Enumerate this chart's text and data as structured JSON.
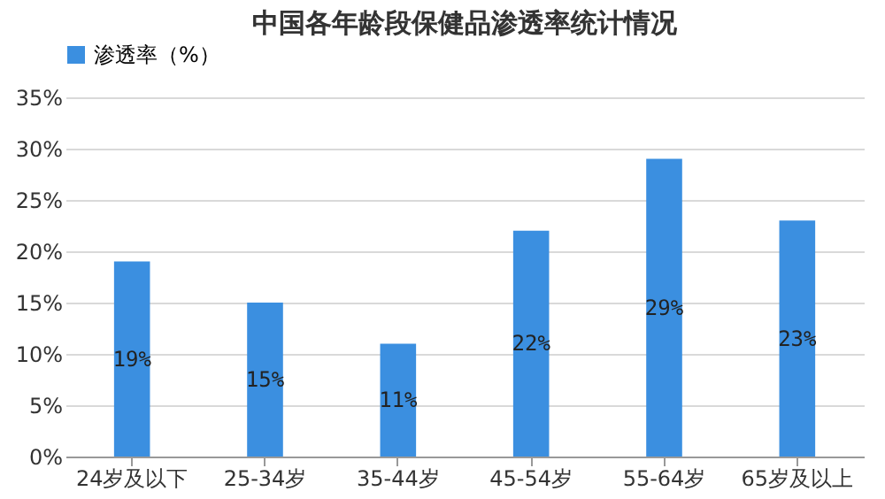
{
  "chart_data": {
    "type": "bar",
    "title": "中国各年龄段保健品渗透率统计情况",
    "categories": [
      "24岁及以下",
      "25-34岁",
      "35-44岁",
      "45-54岁",
      "55-64岁",
      "65岁及以上"
    ],
    "series": [
      {
        "name": "渗透率（%）",
        "color": "#3b8fe0",
        "values": [
          19,
          15,
          11,
          22,
          29,
          23
        ],
        "value_labels": [
          "19%",
          "15%",
          "11%",
          "22%",
          "29%",
          "23%"
        ]
      }
    ],
    "ylim": [
      0,
      35
    ],
    "yticks": [
      {
        "value": 0,
        "label": "0%"
      },
      {
        "value": 5,
        "label": "5%"
      },
      {
        "value": 10,
        "label": "10%"
      },
      {
        "value": 15,
        "label": "15%"
      },
      {
        "value": 20,
        "label": "20%"
      },
      {
        "value": 25,
        "label": "25%"
      },
      {
        "value": 30,
        "label": "30%"
      },
      {
        "value": 35,
        "label": "35%"
      }
    ],
    "grid": "y",
    "legend": "top"
  }
}
